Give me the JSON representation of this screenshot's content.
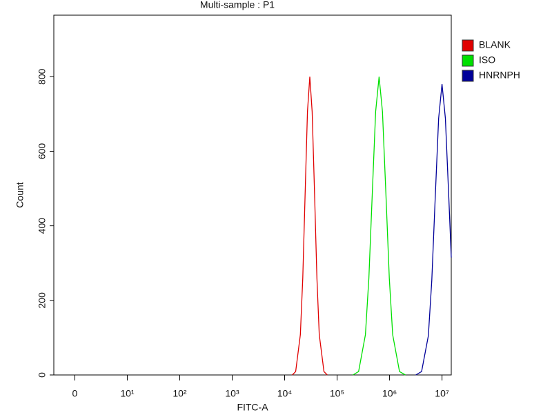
{
  "chart_data": {
    "type": "line",
    "title": "Multi-sample : P1",
    "x_label": "FITC-A",
    "y_label": "Count",
    "xscale": "biexponential",
    "xlim": [
      -4,
      15000000
    ],
    "ylim": [
      0,
      965
    ],
    "xticks": [
      0,
      {
        "value": 10,
        "label": "10¹"
      },
      {
        "value": 100,
        "label": "10²"
      },
      {
        "value": 1000,
        "label": "10³"
      },
      {
        "value": 10000,
        "label": "10⁴"
      },
      {
        "value": 100000,
        "label": "10⁵"
      },
      {
        "value": 1000000,
        "label": "10⁶"
      },
      {
        "value": 10000000,
        "label": "10⁷"
      }
    ],
    "yticks": [
      0,
      200,
      400,
      600,
      800
    ],
    "legend": "right",
    "series": [
      {
        "name": "BLANK",
        "color": "#e00000",
        "x": [
          14000,
          16200,
          19950,
          22130,
          24550,
          27230,
          30200,
          33500,
          37150,
          41210,
          45710,
          56230,
          65000
        ],
        "values": [
          0,
          9,
          108,
          260,
          485,
          706,
          800,
          706,
          485,
          260,
          108,
          9,
          0
        ]
      },
      {
        "name": "ISO",
        "color": "#00e000",
        "x": [
          200000,
          257000,
          346700,
          402700,
          467700,
          543300,
          631000,
          732800,
          851100,
          988600,
          1148000,
          1549000,
          2000000
        ],
        "values": [
          0,
          9,
          108,
          260,
          485,
          706,
          800,
          706,
          485,
          260,
          108,
          9,
          0
        ]
      },
      {
        "name": "HNRNPH",
        "color": "#000099",
        "x": [
          3160000,
          4074000,
          5495000,
          6383000,
          7413000,
          8610000,
          10000000,
          11610000,
          13490000,
          15000000
        ],
        "values": [
          0,
          9,
          105,
          254,
          473,
          688,
          780,
          688,
          473,
          315
        ]
      }
    ]
  }
}
